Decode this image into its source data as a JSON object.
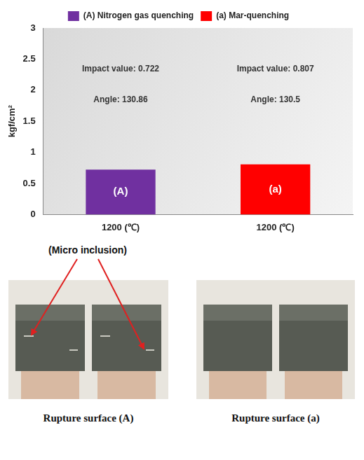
{
  "chart_data": {
    "type": "bar",
    "y_label": "kgf/cm²",
    "categories": [
      "1200 (℃)",
      "1200 (℃)"
    ],
    "series": [
      {
        "name": "(A) Nitrogen gas quenching",
        "color": "#7030a0",
        "values": [
          0.722,
          null
        ]
      },
      {
        "name": "(a) Mar-quenching",
        "color": "#ff0000",
        "values": [
          null,
          0.807
        ]
      }
    ],
    "bar_labels": [
      "(A)",
      "(a)"
    ],
    "annotations": [
      [
        "Impact value: 0.722",
        "Angle: 130.86"
      ],
      [
        "Impact value: 0.807",
        "Angle: 130.5"
      ]
    ],
    "ylim": [
      0,
      3
    ],
    "yticks": [
      0,
      0.5,
      1,
      1.5,
      2,
      2.5,
      3
    ],
    "grid": false,
    "legend": "top"
  },
  "photos": {
    "callout": "(Micro inclusion)",
    "captions": [
      "Rupture surface (A)",
      "Rupture surface (a)"
    ]
  }
}
